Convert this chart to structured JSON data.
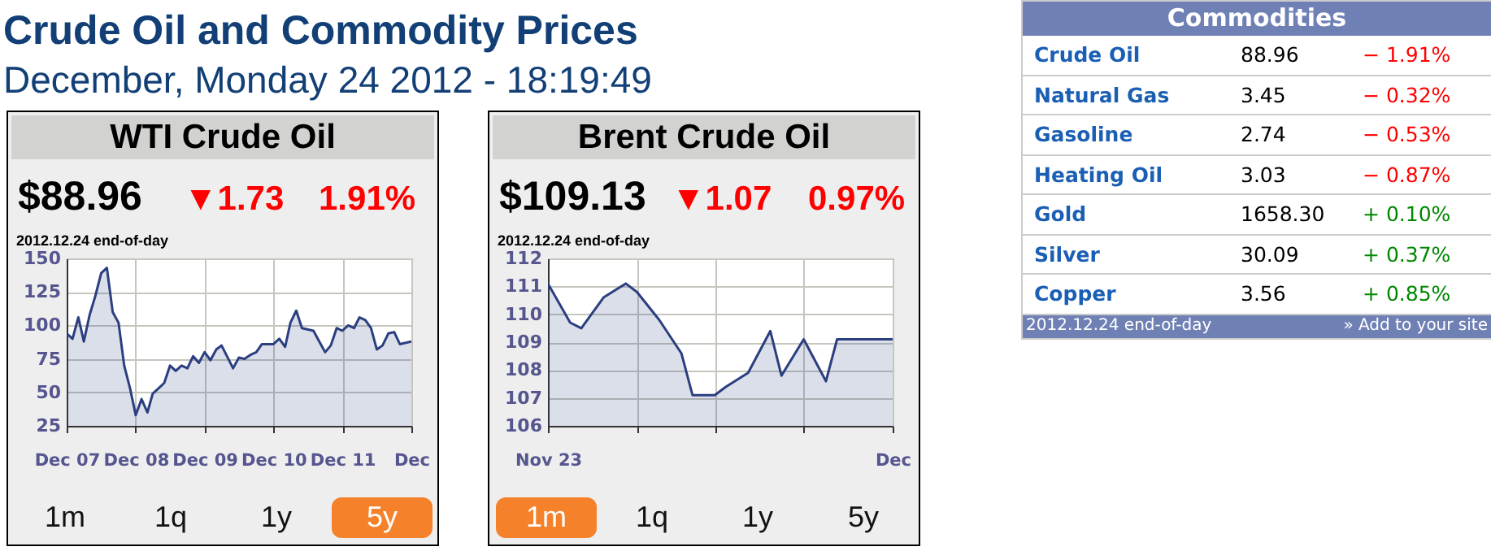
{
  "chart_data": [
    {
      "type": "other",
      "title": "Crude Oil and Commodity Prices",
      "subtitle": "December, Monday 24 2012 - 18:19:49"
    },
    {
      "type": "other",
      "title": "Commodities",
      "annotations": [
        "Crude Oil",
        "88.96",
        "− 1.91%",
        "Natural Gas",
        "3.45",
        "− 0.32%",
        "Gasoline",
        "2.74",
        "− 0.53%",
        "Heating Oil",
        "3.03",
        "− 0.87%",
        "Gold",
        "1658.30",
        "+ 0.10%",
        "Silver",
        "30.09",
        "+ 0.37%",
        "Copper",
        "3.56",
        "+ 0.85%",
        "2012.12.24 end-of-day",
        "» Add to your site"
      ]
    },
    {
      "type": "area",
      "title": "WTI Crude Oil",
      "annotations": [
        "$88.96",
        "▼1.73",
        "1.91%",
        "2012.12.24 end-of-day",
        "1m",
        "1q",
        "1y",
        "5y"
      ],
      "x": [
        "2007-12",
        "2008-01",
        "2008-02",
        "2008-03",
        "2008-04",
        "2008-05",
        "2008-06",
        "2008-07",
        "2008-08",
        "2008-09",
        "2008-10",
        "2008-11",
        "2008-12",
        "2009-01",
        "2009-02",
        "2009-03",
        "2009-04",
        "2009-05",
        "2009-06",
        "2009-07",
        "2009-08",
        "2009-09",
        "2009-10",
        "2009-11",
        "2009-12",
        "2010-01",
        "2010-02",
        "2010-03",
        "2010-05",
        "2010-06",
        "2010-07",
        "2010-08",
        "2010-09",
        "2010-10",
        "2010-12",
        "2011-01",
        "2011-02",
        "2011-03",
        "2011-04",
        "2011-05",
        "2011-07",
        "2011-08",
        "2011-09",
        "2011-10",
        "2011-11",
        "2011-12",
        "2012-01",
        "2012-02",
        "2012-03",
        "2012-04",
        "2012-05",
        "2012-06",
        "2012-07",
        "2012-08",
        "2012-09",
        "2012-10",
        "2012-12"
      ],
      "series": [
        {
          "color": "#2b3f80",
          "values": [
            94,
            90,
            106,
            88,
            108,
            122,
            139,
            143,
            110,
            102,
            70,
            53,
            33,
            45,
            35,
            49,
            53,
            57,
            70,
            66,
            70,
            68,
            77,
            72,
            80,
            74,
            82,
            85,
            68,
            76,
            75,
            78,
            80,
            86,
            86,
            90,
            84,
            102,
            111,
            98,
            96,
            88,
            80,
            85,
            98,
            96,
            100,
            98,
            106,
            104,
            98,
            82,
            85,
            94,
            95,
            86,
            88
          ]
        }
      ],
      "xlim": [
        "2007-12",
        "2012-12"
      ],
      "xticks": [
        {
          "value": "2007-12",
          "label": "Dec 07"
        },
        {
          "value": "2008-12",
          "label": "Dec 08"
        },
        {
          "value": "2009-12",
          "label": "Dec 09"
        },
        {
          "value": "2010-12",
          "label": "Dec 10"
        },
        {
          "value": "2011-12",
          "label": "Dec 11"
        },
        {
          "value": "2012-12",
          "label": "Dec"
        }
      ],
      "ylim": [
        25,
        150
      ],
      "yticks": [
        25,
        50,
        75,
        100,
        125,
        150
      ],
      "grid": true
    },
    {
      "type": "area",
      "title": "Brent Crude Oil",
      "annotations": [
        "$109.13",
        "▼1.07",
        "0.97%",
        "2012.12.24 end-of-day",
        "1m",
        "1q",
        "1y",
        "5y"
      ],
      "x": [
        "2012-11-23",
        "2012-11-25",
        "2012-11-26",
        "2012-11-28",
        "2012-11-30",
        "2012-12-01",
        "2012-12-03",
        "2012-12-05",
        "2012-12-06",
        "2012-12-08",
        "2012-12-09",
        "2012-12-11",
        "2012-12-13",
        "2012-12-14",
        "2012-12-16",
        "2012-12-18",
        "2012-12-19",
        "2012-12-24"
      ],
      "series": [
        {
          "color": "#2b3f80",
          "values": [
            111.1,
            109.7,
            109.5,
            110.6,
            111.1,
            110.8,
            109.8,
            108.6,
            107.1,
            107.1,
            107.4,
            107.9,
            109.4,
            107.8,
            109.1,
            107.6,
            109.1,
            109.1
          ]
        }
      ],
      "xlim": [
        "2012-11-23",
        "2012-12-24"
      ],
      "xticks": [
        {
          "value": "2012-11-23",
          "label": "Nov 23"
        },
        {
          "value": "2012-12-01",
          "label": null
        },
        {
          "value": "2012-12-08",
          "label": null
        },
        {
          "value": "2012-12-16",
          "label": null
        },
        {
          "value": "2012-12-24",
          "label": "Dec"
        }
      ],
      "ylim": [
        106,
        112
      ],
      "yticks": [
        106,
        107,
        108,
        109,
        110,
        111,
        112
      ],
      "grid": true
    }
  ]
}
